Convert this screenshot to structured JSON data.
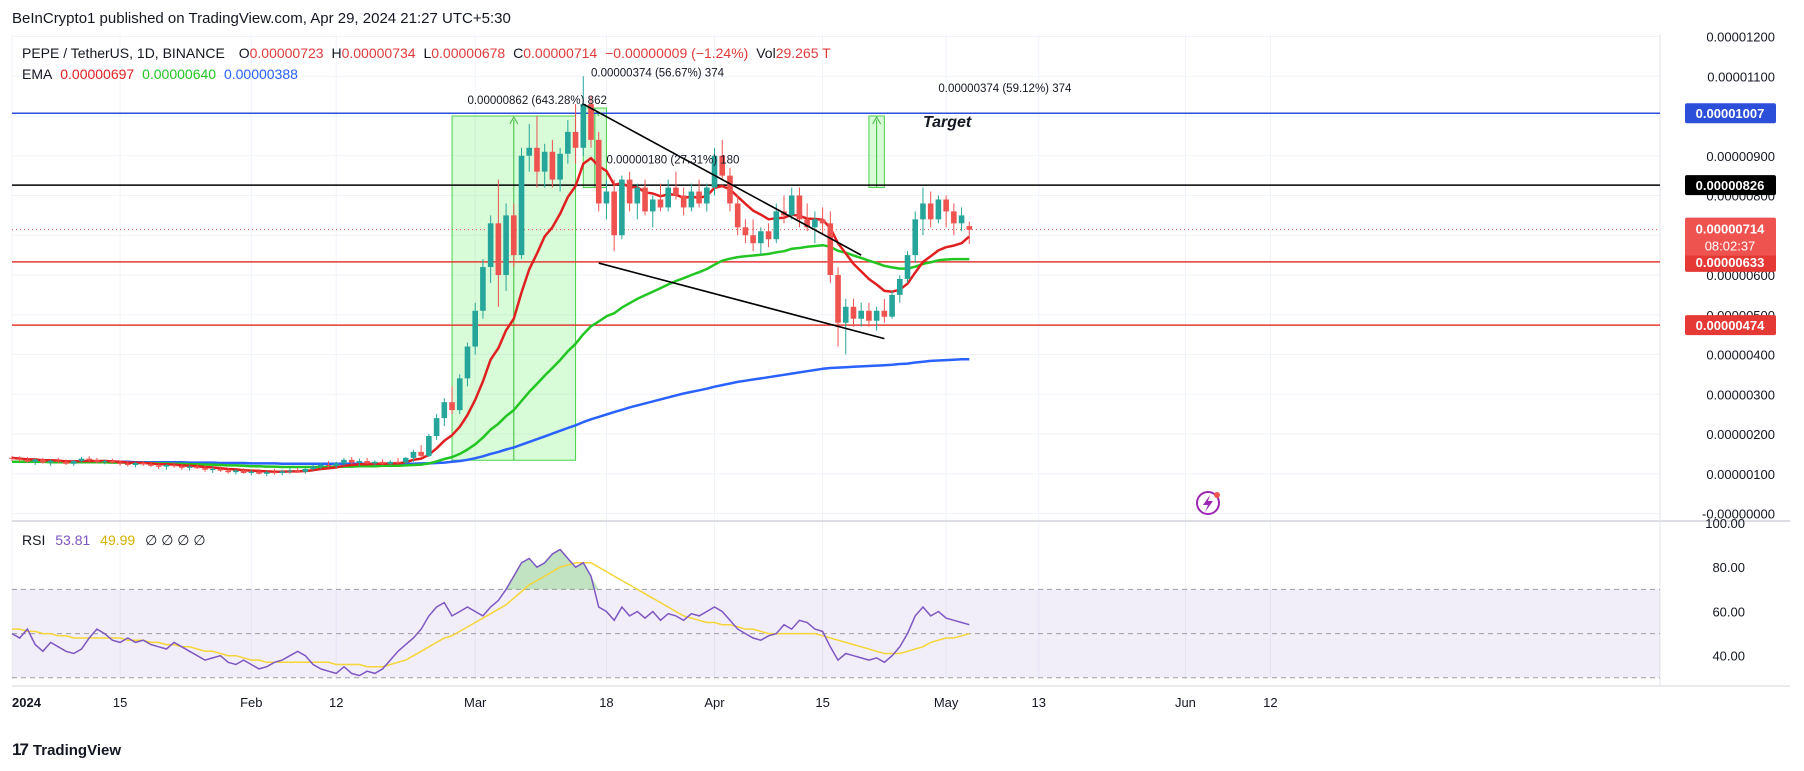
{
  "header": {
    "published": "BeInCrypto1 published on TradingView.com, Apr 29, 2024 21:27 UTC+5:30"
  },
  "symbol": {
    "name": "PEPE / TetherUS, 1D, BINANCE",
    "o_label": "O",
    "o": "0.00000723",
    "h_label": "H",
    "h": "0.00000734",
    "l_label": "L",
    "l": "0.00000678",
    "c_label": "C",
    "c": "0.00000714",
    "change": "−0.00000009 (−1.24%)",
    "vol_label": "Vol",
    "vol": "29.265 T"
  },
  "ema": {
    "label": "EMA",
    "v1": "0.00000697",
    "v2": "0.00000640",
    "v3": "0.00000388"
  },
  "rsi": {
    "label": "RSI",
    "v1": "53.81",
    "v2": "49.99",
    "extras": "∅  ∅  ∅  ∅"
  },
  "footer": {
    "brand": "TradingView",
    "glyph": "17"
  },
  "colors": {
    "up": "#26a69a",
    "down": "#ef5350",
    "ema_fast": "#e02020",
    "ema_mid": "#22c522",
    "ema_slow": "#2962ff",
    "rsi_line": "#7e57c2",
    "rsi_ma": "#f5d538",
    "target_line": "#2b4fd8",
    "support": "#e53935",
    "resistance": "#000000"
  },
  "chart_data": {
    "type": "candlestick",
    "price_axis": {
      "ticks": [
        "0.00001200",
        "0.00001100",
        "0.00001000",
        "0.00000900",
        "0.00000800",
        "0.00000700",
        "0.00000600",
        "0.00000500",
        "0.00000400",
        "0.00000300",
        "0.00000200",
        "0.00000100",
        "-0.00000000"
      ],
      "tick_values": [
        12,
        11,
        10,
        9,
        8,
        7,
        6,
        5,
        4,
        3,
        2,
        1,
        0
      ],
      "unit_note": "× 1e-6 USDT",
      "range": [
        0,
        12.2
      ]
    },
    "time_axis": {
      "labels": [
        "2024",
        "15",
        "Feb",
        "12",
        "Mar",
        "18",
        "Apr",
        "15",
        "May",
        "13",
        "Jun",
        "12"
      ],
      "day_index": [
        0,
        14,
        31,
        42,
        60,
        77,
        91,
        105,
        121,
        133,
        152,
        163
      ]
    },
    "horizontal_levels": [
      {
        "label": "0.00001007",
        "value": 10.07,
        "color": "#2b4fd8",
        "bg": "#2b4fd8"
      },
      {
        "label": "0.00000826",
        "value": 8.26,
        "color": "#000000",
        "bg": "#000000"
      },
      {
        "label": "0.00000633",
        "value": 6.33,
        "color": "#e53935",
        "bg": "#e53935"
      },
      {
        "label": "0.00000474",
        "value": 4.74,
        "color": "#e53935",
        "bg": "#e53935"
      }
    ],
    "current_price": {
      "label": "0.00000714",
      "value": 7.14,
      "countdown": "08:02:37"
    },
    "annotations": [
      {
        "text": "0.00000862 (643.28%) 862",
        "day": 59,
        "value": 10.3
      },
      {
        "text": "0.00000374 (56.67%) 374",
        "day": 75,
        "value": 11.0
      },
      {
        "text": "0.00000180 (27.31%) 180",
        "day": 77,
        "value": 8.8
      },
      {
        "text": "0.00000374 (59.12%) 374",
        "day": 120,
        "value": 10.6
      },
      {
        "text": "Target",
        "day": 118,
        "value": 9.72,
        "italic": true
      }
    ],
    "measure_boxes": [
      {
        "day_start": 57,
        "day_end": 73,
        "low": 1.34,
        "high": 10.0
      },
      {
        "day_start": 74,
        "day_end": 77,
        "low": 8.2,
        "high": 10.2
      },
      {
        "day_start": 111,
        "day_end": 113,
        "low": 8.2,
        "high": 10.0
      }
    ],
    "trendlines": [
      {
        "d1": 74,
        "v1": 10.3,
        "d2": 110,
        "v2": 6.5
      },
      {
        "d1": 76,
        "v1": 6.3,
        "d2": 113,
        "v2": 4.4
      }
    ],
    "series_note": "candles given as [open, high, low, close] ×1e-6, one per day from Jan 1 2024",
    "candles": [
      [
        1.4,
        1.45,
        1.32,
        1.38
      ],
      [
        1.38,
        1.44,
        1.3,
        1.35
      ],
      [
        1.35,
        1.42,
        1.28,
        1.3
      ],
      [
        1.3,
        1.38,
        1.22,
        1.36
      ],
      [
        1.36,
        1.4,
        1.25,
        1.28
      ],
      [
        1.28,
        1.36,
        1.2,
        1.33
      ],
      [
        1.33,
        1.4,
        1.26,
        1.3
      ],
      [
        1.3,
        1.36,
        1.22,
        1.25
      ],
      [
        1.25,
        1.35,
        1.2,
        1.32
      ],
      [
        1.32,
        1.42,
        1.28,
        1.38
      ],
      [
        1.38,
        1.44,
        1.3,
        1.34
      ],
      [
        1.34,
        1.4,
        1.26,
        1.3
      ],
      [
        1.3,
        1.36,
        1.24,
        1.32
      ],
      [
        1.32,
        1.38,
        1.25,
        1.28
      ],
      [
        1.28,
        1.33,
        1.2,
        1.25
      ],
      [
        1.25,
        1.32,
        1.18,
        1.22
      ],
      [
        1.22,
        1.3,
        1.16,
        1.27
      ],
      [
        1.27,
        1.32,
        1.2,
        1.24
      ],
      [
        1.24,
        1.3,
        1.17,
        1.2
      ],
      [
        1.2,
        1.26,
        1.12,
        1.18
      ],
      [
        1.18,
        1.25,
        1.1,
        1.22
      ],
      [
        1.22,
        1.28,
        1.15,
        1.19
      ],
      [
        1.19,
        1.24,
        1.1,
        1.15
      ],
      [
        1.15,
        1.22,
        1.08,
        1.18
      ],
      [
        1.18,
        1.24,
        1.12,
        1.14
      ],
      [
        1.14,
        1.2,
        1.05,
        1.1
      ],
      [
        1.1,
        1.18,
        1.02,
        1.12
      ],
      [
        1.12,
        1.18,
        1.05,
        1.08
      ],
      [
        1.08,
        1.15,
        1.0,
        1.04
      ],
      [
        1.04,
        1.12,
        0.98,
        1.08
      ],
      [
        1.08,
        1.14,
        1.0,
        1.02
      ],
      [
        1.02,
        1.1,
        0.96,
        1.05
      ],
      [
        1.05,
        1.12,
        0.98,
        1.0
      ],
      [
        1.0,
        1.08,
        0.94,
        1.04
      ],
      [
        1.04,
        1.12,
        0.98,
        1.02
      ],
      [
        1.02,
        1.1,
        0.96,
        1.06
      ],
      [
        1.06,
        1.14,
        1.0,
        1.08
      ],
      [
        1.08,
        1.15,
        1.02,
        1.05
      ],
      [
        1.05,
        1.14,
        1.0,
        1.12
      ],
      [
        1.12,
        1.22,
        1.08,
        1.18
      ],
      [
        1.18,
        1.28,
        1.12,
        1.22
      ],
      [
        1.22,
        1.32,
        1.15,
        1.2
      ],
      [
        1.2,
        1.3,
        1.14,
        1.26
      ],
      [
        1.26,
        1.4,
        1.2,
        1.35
      ],
      [
        1.35,
        1.42,
        1.24,
        1.28
      ],
      [
        1.28,
        1.38,
        1.2,
        1.32
      ],
      [
        1.32,
        1.4,
        1.24,
        1.26
      ],
      [
        1.26,
        1.34,
        1.2,
        1.3
      ],
      [
        1.3,
        1.36,
        1.22,
        1.25
      ],
      [
        1.25,
        1.34,
        1.2,
        1.3
      ],
      [
        1.3,
        1.4,
        1.24,
        1.28
      ],
      [
        1.28,
        1.42,
        1.22,
        1.4
      ],
      [
        1.4,
        1.6,
        1.3,
        1.55
      ],
      [
        1.55,
        1.72,
        1.4,
        1.45
      ],
      [
        1.45,
        2.0,
        1.42,
        1.95
      ],
      [
        1.95,
        2.5,
        1.85,
        2.4
      ],
      [
        2.4,
        2.9,
        2.2,
        2.8
      ],
      [
        2.8,
        3.2,
        2.5,
        2.6
      ],
      [
        2.6,
        3.5,
        2.5,
        3.4
      ],
      [
        3.4,
        4.3,
        3.2,
        4.2
      ],
      [
        4.2,
        5.3,
        4.0,
        5.1
      ],
      [
        5.1,
        6.4,
        4.9,
        6.2
      ],
      [
        6.2,
        7.5,
        5.8,
        7.3
      ],
      [
        7.3,
        8.4,
        5.2,
        6.0
      ],
      [
        6.0,
        7.8,
        5.6,
        7.5
      ],
      [
        7.5,
        7.8,
        6.2,
        6.5
      ],
      [
        6.5,
        9.2,
        6.4,
        9.0
      ],
      [
        9.0,
        9.8,
        8.6,
        9.2
      ],
      [
        9.2,
        10.0,
        8.2,
        8.6
      ],
      [
        8.6,
        9.3,
        8.2,
        9.1
      ],
      [
        9.1,
        9.4,
        8.2,
        8.4
      ],
      [
        8.4,
        9.2,
        8.1,
        9.05
      ],
      [
        9.05,
        9.9,
        8.8,
        9.6
      ],
      [
        9.6,
        10.3,
        8.8,
        9.2
      ],
      [
        9.2,
        11.0,
        9.0,
        10.3
      ],
      [
        10.3,
        10.5,
        9.2,
        9.4
      ],
      [
        9.4,
        9.6,
        7.6,
        7.8
      ],
      [
        7.8,
        8.4,
        7.4,
        8.1
      ],
      [
        8.1,
        8.4,
        6.6,
        7.0
      ],
      [
        7.0,
        8.5,
        6.9,
        8.4
      ],
      [
        8.4,
        8.6,
        7.6,
        7.8
      ],
      [
        7.8,
        8.3,
        7.4,
        8.2
      ],
      [
        8.2,
        8.4,
        7.5,
        7.6
      ],
      [
        7.6,
        8.0,
        7.2,
        7.9
      ],
      [
        7.9,
        8.3,
        7.6,
        7.7
      ],
      [
        7.7,
        8.4,
        7.6,
        8.2
      ],
      [
        8.2,
        8.6,
        7.9,
        8.0
      ],
      [
        8.0,
        8.2,
        7.5,
        7.7
      ],
      [
        7.7,
        8.3,
        7.6,
        8.1
      ],
      [
        8.1,
        8.4,
        7.7,
        7.8
      ],
      [
        7.8,
        8.3,
        7.6,
        8.2
      ],
      [
        8.2,
        9.2,
        8.0,
        9.0
      ],
      [
        9.0,
        9.4,
        8.4,
        8.5
      ],
      [
        8.5,
        8.7,
        7.6,
        7.8
      ],
      [
        7.8,
        8.0,
        7.0,
        7.2
      ],
      [
        7.2,
        7.4,
        6.8,
        7.0
      ],
      [
        7.0,
        7.4,
        6.6,
        6.8
      ],
      [
        6.8,
        7.2,
        6.5,
        7.1
      ],
      [
        7.1,
        7.3,
        6.7,
        6.9
      ],
      [
        6.9,
        7.8,
        6.8,
        7.6
      ],
      [
        7.6,
        8.0,
        7.3,
        7.5
      ],
      [
        7.5,
        8.2,
        7.4,
        8.0
      ],
      [
        8.0,
        8.2,
        7.2,
        7.4
      ],
      [
        7.4,
        7.8,
        7.1,
        7.2
      ],
      [
        7.2,
        7.6,
        6.8,
        7.4
      ],
      [
        7.4,
        7.7,
        7.0,
        7.3
      ],
      [
        7.3,
        7.6,
        5.8,
        6.0
      ],
      [
        6.0,
        6.2,
        4.2,
        4.8
      ],
      [
        4.8,
        5.4,
        4.0,
        5.2
      ],
      [
        5.2,
        5.4,
        4.7,
        4.9
      ],
      [
        4.9,
        5.3,
        4.7,
        5.1
      ],
      [
        5.1,
        5.3,
        4.7,
        4.85
      ],
      [
        4.85,
        5.2,
        4.6,
        5.1
      ],
      [
        5.1,
        5.4,
        4.8,
        4.95
      ],
      [
        4.95,
        5.6,
        4.9,
        5.5
      ],
      [
        5.5,
        6.0,
        5.3,
        5.9
      ],
      [
        5.9,
        6.6,
        5.8,
        6.5
      ],
      [
        6.5,
        7.6,
        6.3,
        7.4
      ],
      [
        7.4,
        8.2,
        7.0,
        7.8
      ],
      [
        7.8,
        8.1,
        7.2,
        7.4
      ],
      [
        7.4,
        8.0,
        7.3,
        7.9
      ],
      [
        7.9,
        8.0,
        7.2,
        7.6
      ],
      [
        7.6,
        7.8,
        7.0,
        7.3
      ],
      [
        7.3,
        7.7,
        7.1,
        7.5
      ],
      [
        7.23,
        7.34,
        6.78,
        7.14
      ]
    ],
    "ema_fast": [
      1.4,
      1.38,
      1.36,
      1.36,
      1.34,
      1.34,
      1.33,
      1.31,
      1.31,
      1.32,
      1.32,
      1.32,
      1.32,
      1.31,
      1.3,
      1.28,
      1.28,
      1.27,
      1.26,
      1.24,
      1.24,
      1.23,
      1.21,
      1.2,
      1.19,
      1.17,
      1.16,
      1.14,
      1.12,
      1.11,
      1.09,
      1.08,
      1.07,
      1.06,
      1.05,
      1.05,
      1.06,
      1.06,
      1.07,
      1.09,
      1.12,
      1.14,
      1.16,
      1.2,
      1.22,
      1.24,
      1.24,
      1.25,
      1.25,
      1.26,
      1.26,
      1.29,
      1.35,
      1.38,
      1.48,
      1.64,
      1.83,
      1.97,
      2.18,
      2.48,
      2.86,
      3.32,
      3.87,
      4.16,
      4.61,
      4.9,
      5.56,
      6.14,
      6.54,
      6.97,
      7.2,
      7.54,
      7.96,
      8.24,
      8.8,
      8.94,
      8.74,
      8.62,
      8.27,
      8.31,
      8.21,
      8.21,
      8.08,
      8.05,
      7.98,
      8.03,
      8.02,
      7.94,
      7.97,
      7.94,
      7.99,
      8.19,
      8.24,
      8.15,
      7.97,
      7.79,
      7.62,
      7.52,
      7.4,
      7.43,
      7.44,
      7.52,
      7.49,
      7.42,
      7.41,
      7.39,
      7.18,
      6.8,
      6.54,
      6.28,
      6.09,
      5.9,
      5.76,
      5.6,
      5.58,
      5.63,
      5.78,
      6.06,
      6.33,
      6.47,
      6.62,
      6.7,
      6.74,
      6.8,
      6.97
    ],
    "ema_mid": [
      1.3,
      1.3,
      1.3,
      1.3,
      1.3,
      1.29,
      1.29,
      1.29,
      1.29,
      1.29,
      1.29,
      1.29,
      1.29,
      1.28,
      1.28,
      1.28,
      1.27,
      1.27,
      1.27,
      1.26,
      1.26,
      1.25,
      1.25,
      1.24,
      1.24,
      1.23,
      1.23,
      1.22,
      1.21,
      1.21,
      1.2,
      1.19,
      1.19,
      1.18,
      1.18,
      1.17,
      1.17,
      1.17,
      1.17,
      1.17,
      1.17,
      1.17,
      1.18,
      1.18,
      1.18,
      1.19,
      1.19,
      1.19,
      1.2,
      1.2,
      1.2,
      1.21,
      1.22,
      1.23,
      1.26,
      1.31,
      1.37,
      1.42,
      1.5,
      1.61,
      1.74,
      1.91,
      2.11,
      2.26,
      2.45,
      2.6,
      2.83,
      3.06,
      3.26,
      3.47,
      3.66,
      3.86,
      4.08,
      4.27,
      4.51,
      4.71,
      4.83,
      4.96,
      5.04,
      5.18,
      5.29,
      5.4,
      5.49,
      5.58,
      5.67,
      5.76,
      5.85,
      5.92,
      6.0,
      6.07,
      6.15,
      6.26,
      6.36,
      6.41,
      6.45,
      6.47,
      6.49,
      6.51,
      6.53,
      6.57,
      6.6,
      6.66,
      6.68,
      6.71,
      6.73,
      6.75,
      6.71,
      6.61,
      6.56,
      6.49,
      6.43,
      6.36,
      6.3,
      6.23,
      6.19,
      6.16,
      6.16,
      6.21,
      6.28,
      6.32,
      6.37,
      6.39,
      6.4,
      6.4,
      6.4
    ],
    "ema_slow": [
      1.3,
      1.3,
      1.3,
      1.3,
      1.3,
      1.3,
      1.3,
      1.3,
      1.3,
      1.3,
      1.3,
      1.3,
      1.3,
      1.3,
      1.3,
      1.3,
      1.29,
      1.29,
      1.29,
      1.29,
      1.29,
      1.29,
      1.29,
      1.28,
      1.28,
      1.28,
      1.28,
      1.27,
      1.27,
      1.27,
      1.27,
      1.26,
      1.26,
      1.26,
      1.26,
      1.25,
      1.25,
      1.25,
      1.25,
      1.25,
      1.25,
      1.25,
      1.25,
      1.25,
      1.25,
      1.25,
      1.25,
      1.25,
      1.25,
      1.25,
      1.25,
      1.25,
      1.25,
      1.26,
      1.26,
      1.27,
      1.28,
      1.3,
      1.32,
      1.35,
      1.39,
      1.44,
      1.5,
      1.55,
      1.61,
      1.66,
      1.73,
      1.8,
      1.87,
      1.94,
      2.01,
      2.08,
      2.15,
      2.22,
      2.3,
      2.37,
      2.43,
      2.49,
      2.55,
      2.61,
      2.67,
      2.72,
      2.77,
      2.82,
      2.87,
      2.92,
      2.97,
      3.02,
      3.06,
      3.1,
      3.14,
      3.19,
      3.23,
      3.27,
      3.31,
      3.34,
      3.37,
      3.4,
      3.43,
      3.46,
      3.49,
      3.52,
      3.55,
      3.58,
      3.61,
      3.64,
      3.66,
      3.67,
      3.68,
      3.69,
      3.7,
      3.71,
      3.72,
      3.73,
      3.74,
      3.76,
      3.77,
      3.8,
      3.82,
      3.84,
      3.85,
      3.86,
      3.87,
      3.88,
      3.88
    ],
    "rsi_axis": {
      "ticks": [
        "100.00",
        "80.00",
        "60.00",
        "40.00"
      ],
      "tick_values": [
        100,
        80,
        60,
        40
      ],
      "range": [
        29,
        100
      ],
      "band": [
        30,
        70
      ]
    },
    "rsi": [
      50,
      48,
      52,
      45,
      42,
      46,
      44,
      42,
      41,
      43,
      48,
      52,
      50,
      47,
      46,
      48,
      46,
      47,
      45,
      44,
      43,
      46,
      44,
      42,
      40,
      38,
      39,
      40,
      37,
      36,
      38,
      36,
      34,
      35,
      37,
      38,
      40,
      42,
      40,
      36,
      34,
      33,
      32,
      35,
      32,
      31,
      33,
      32,
      34,
      38,
      42,
      45,
      48,
      52,
      58,
      62,
      64,
      58,
      60,
      62,
      60,
      58,
      62,
      65,
      70,
      76,
      82,
      84,
      80,
      82,
      86,
      88,
      84,
      80,
      82,
      76,
      62,
      60,
      56,
      62,
      58,
      60,
      57,
      60,
      56,
      59,
      58,
      56,
      59,
      58,
      60,
      62,
      60,
      56,
      52,
      50,
      48,
      47,
      49,
      50,
      54,
      52,
      56,
      55,
      52,
      51,
      44,
      38,
      41,
      40,
      39,
      38,
      39,
      37,
      40,
      44,
      50,
      58,
      62,
      58,
      60,
      57,
      56,
      55,
      54
    ],
    "rsi_ma": [
      52,
      52,
      51,
      51,
      50,
      50,
      49,
      49,
      48,
      48,
      48,
      48,
      48,
      48,
      48,
      47,
      47,
      47,
      46,
      46,
      45,
      45,
      44,
      44,
      43,
      42,
      42,
      41,
      40,
      40,
      39,
      38,
      38,
      37,
      37,
      37,
      37,
      37,
      37,
      37,
      37,
      37,
      36,
      36,
      36,
      36,
      35,
      35,
      35,
      36,
      37,
      38,
      40,
      42,
      44,
      46,
      48,
      49,
      51,
      53,
      55,
      57,
      59,
      61,
      63,
      66,
      69,
      72,
      74,
      76,
      78,
      80,
      81,
      82,
      82,
      82,
      80,
      78,
      76,
      74,
      72,
      70,
      68,
      66,
      64,
      62,
      60,
      58,
      57,
      56,
      55,
      55,
      54,
      54,
      53,
      52,
      52,
      51,
      50,
      50,
      50,
      50,
      50,
      50,
      50,
      49,
      48,
      47,
      46,
      45,
      44,
      43,
      42,
      41,
      41,
      41,
      42,
      43,
      44,
      46,
      47,
      48,
      48,
      49,
      50
    ]
  }
}
